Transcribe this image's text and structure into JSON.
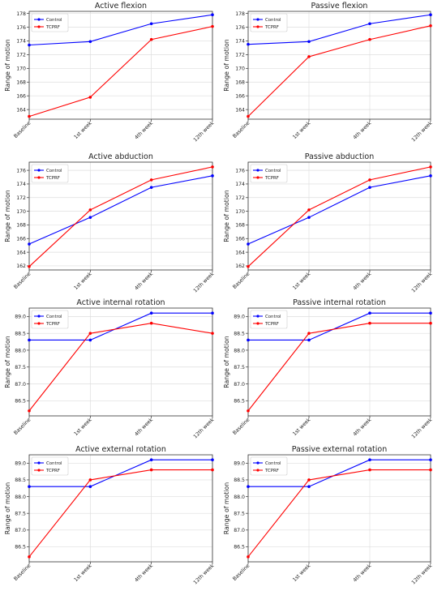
{
  "chart_data": [
    {
      "type": "line",
      "title": "Active flexion",
      "ylabel": "Range of motion",
      "categories": [
        "Baseline",
        "1st week",
        "4th week",
        "12th week"
      ],
      "ylim": [
        162.6,
        178.3
      ],
      "yticks": [
        "164",
        "166",
        "168",
        "170",
        "172",
        "174",
        "176",
        "178"
      ],
      "tick_values": [
        164,
        166,
        168,
        170,
        172,
        174,
        176,
        178
      ],
      "grid": true,
      "legend": "top-left",
      "series": [
        {
          "name": "Control",
          "color": "#0000ff",
          "values": [
            173.4,
            173.9,
            176.5,
            177.8
          ]
        },
        {
          "name": "TCPRF",
          "color": "#ff0000",
          "values": [
            163.0,
            165.8,
            174.2,
            176.1
          ]
        }
      ]
    },
    {
      "type": "line",
      "title": "Passive flexion",
      "ylabel": "Range of motion",
      "categories": [
        "Baseline",
        "1st week",
        "4th week",
        "12th week"
      ],
      "ylim": [
        162.6,
        178.3
      ],
      "yticks": [
        "164",
        "166",
        "168",
        "170",
        "172",
        "174",
        "176",
        "178"
      ],
      "tick_values": [
        164,
        166,
        168,
        170,
        172,
        174,
        176,
        178
      ],
      "grid": true,
      "legend": "top-left",
      "series": [
        {
          "name": "Control",
          "color": "#0000ff",
          "values": [
            173.5,
            173.9,
            176.5,
            177.8
          ]
        },
        {
          "name": "TCPRF",
          "color": "#ff0000",
          "values": [
            163.0,
            171.7,
            174.2,
            176.2
          ]
        }
      ]
    },
    {
      "type": "line",
      "title": "Active abduction",
      "ylabel": "Range of motion",
      "categories": [
        "Baseline",
        "1st week",
        "4th week",
        "12th week"
      ],
      "ylim": [
        161.4,
        177.2
      ],
      "yticks": [
        "162",
        "164",
        "166",
        "168",
        "170",
        "172",
        "174",
        "176"
      ],
      "tick_values": [
        162,
        164,
        166,
        168,
        170,
        172,
        174,
        176
      ],
      "grid": true,
      "legend": "top-left",
      "series": [
        {
          "name": "Control",
          "color": "#0000ff",
          "values": [
            165.2,
            169.1,
            173.5,
            175.2
          ]
        },
        {
          "name": "TCPRF",
          "color": "#ff0000",
          "values": [
            161.9,
            170.2,
            174.6,
            176.5
          ]
        }
      ]
    },
    {
      "type": "line",
      "title": "Passive abduction",
      "ylabel": "Range of motion",
      "categories": [
        "Baseline",
        "1st week",
        "4th week",
        "12th week"
      ],
      "ylim": [
        161.4,
        177.2
      ],
      "yticks": [
        "162",
        "164",
        "166",
        "168",
        "170",
        "172",
        "174",
        "176"
      ],
      "tick_values": [
        162,
        164,
        166,
        168,
        170,
        172,
        174,
        176
      ],
      "grid": true,
      "legend": "top-left",
      "series": [
        {
          "name": "Control",
          "color": "#0000ff",
          "values": [
            165.2,
            169.1,
            173.5,
            175.2
          ]
        },
        {
          "name": "TCPRF",
          "color": "#ff0000",
          "values": [
            161.9,
            170.2,
            174.6,
            176.5
          ]
        }
      ]
    },
    {
      "type": "line",
      "title": "Active internal rotation",
      "ylabel": "Range of motion",
      "categories": [
        "Baseline",
        "1st week",
        "4th week",
        "12th week"
      ],
      "ylim": [
        86.05,
        89.25
      ],
      "yticks": [
        "86.5",
        "87.0",
        "87.5",
        "88.0",
        "88.5",
        "89.0"
      ],
      "tick_values": [
        86.5,
        87.0,
        87.5,
        88.0,
        88.5,
        89.0
      ],
      "grid": true,
      "legend": "top-left",
      "series": [
        {
          "name": "Control",
          "color": "#0000ff",
          "values": [
            88.3,
            88.3,
            89.1,
            89.1
          ]
        },
        {
          "name": "TCPRF",
          "color": "#ff0000",
          "values": [
            86.2,
            88.5,
            88.8,
            88.5
          ]
        }
      ]
    },
    {
      "type": "line",
      "title": "Passive internal rotation",
      "ylabel": "Range of motion",
      "categories": [
        "Baseline",
        "1st week",
        "4th week",
        "12th week"
      ],
      "ylim": [
        86.05,
        89.25
      ],
      "yticks": [
        "86.5",
        "87.0",
        "87.5",
        "88.0",
        "88.5",
        "89.0"
      ],
      "tick_values": [
        86.5,
        87.0,
        87.5,
        88.0,
        88.5,
        89.0
      ],
      "grid": true,
      "legend": "top-left",
      "series": [
        {
          "name": "Control",
          "color": "#0000ff",
          "values": [
            88.3,
            88.3,
            89.1,
            89.1
          ]
        },
        {
          "name": "TCPRF",
          "color": "#ff0000",
          "values": [
            86.2,
            88.5,
            88.8,
            88.8
          ]
        }
      ]
    },
    {
      "type": "line",
      "title": "Active external rotation",
      "ylabel": "Range of motion",
      "categories": [
        "Baseline",
        "1st week",
        "4th week",
        "12th week"
      ],
      "ylim": [
        86.05,
        89.25
      ],
      "yticks": [
        "86.5",
        "87.0",
        "87.5",
        "88.0",
        "88.5",
        "89.0"
      ],
      "tick_values": [
        86.5,
        87.0,
        87.5,
        88.0,
        88.5,
        89.0
      ],
      "grid": true,
      "legend": "top-left",
      "series": [
        {
          "name": "Control",
          "color": "#0000ff",
          "values": [
            88.3,
            88.3,
            89.1,
            89.1
          ]
        },
        {
          "name": "TCPRF",
          "color": "#ff0000",
          "values": [
            86.2,
            88.5,
            88.8,
            88.8
          ]
        }
      ]
    },
    {
      "type": "line",
      "title": "Passive external rotation",
      "ylabel": "Range of motion",
      "categories": [
        "Baseline",
        "1st week",
        "4th week",
        "12th week"
      ],
      "ylim": [
        86.05,
        89.25
      ],
      "yticks": [
        "86.5",
        "87.0",
        "87.5",
        "88.0",
        "88.5",
        "89.0"
      ],
      "tick_values": [
        86.5,
        87.0,
        87.5,
        88.0,
        88.5,
        89.0
      ],
      "grid": true,
      "legend": "top-left",
      "series": [
        {
          "name": "Control",
          "color": "#0000ff",
          "values": [
            88.3,
            88.3,
            89.1,
            89.1
          ]
        },
        {
          "name": "TCPRF",
          "color": "#ff0000",
          "values": [
            86.2,
            88.5,
            88.8,
            88.8
          ]
        }
      ]
    }
  ]
}
